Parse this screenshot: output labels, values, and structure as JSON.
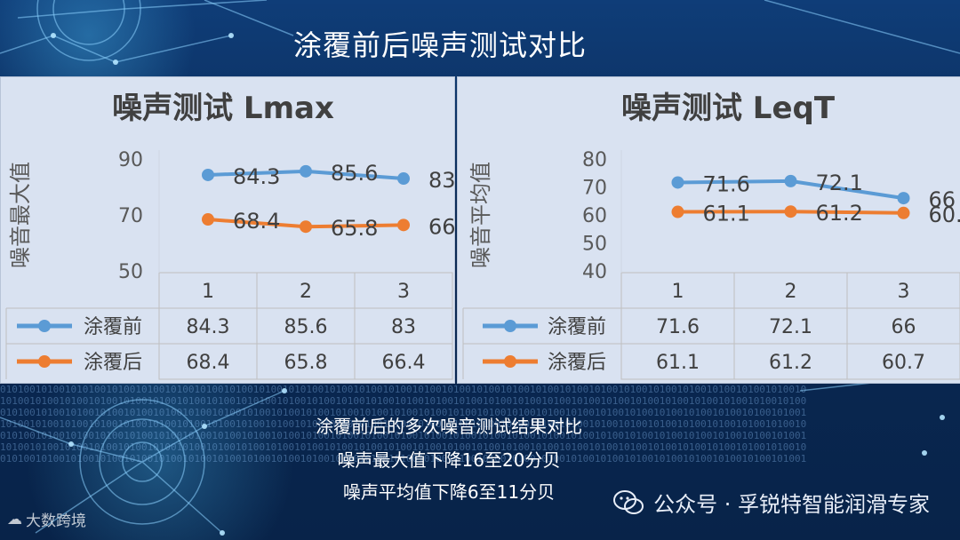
{
  "slide": {
    "title": "涂覆前后噪声测试对比",
    "captions": [
      "涂覆前后的多次噪音测试结果对比",
      "噪声最大值下降16至20分贝",
      "噪声平均值下降6至11分贝"
    ],
    "wechat_label": "公众号 · 孚锐特智能润滑专家",
    "watermark": "大数跨境"
  },
  "colors": {
    "before": "#5b9bd5",
    "after": "#ed7d31",
    "panel_bg": "#d9e2f1"
  },
  "chart_data": [
    {
      "type": "line",
      "title": "噪声测试 Lmax",
      "ylabel": "噪音最大值",
      "categories": [
        "1",
        "2",
        "3"
      ],
      "yticks": [
        50,
        70,
        90
      ],
      "ylim": [
        50,
        90
      ],
      "series": [
        {
          "name": "涂覆前",
          "values": [
            84.3,
            85.6,
            83
          ]
        },
        {
          "name": "涂覆后",
          "values": [
            68.4,
            65.8,
            66.4
          ]
        }
      ],
      "data_table": true,
      "grid": false
    },
    {
      "type": "line",
      "title": "噪声测试 LeqT",
      "ylabel": "噪音平均值",
      "categories": [
        "1",
        "2",
        "3"
      ],
      "yticks": [
        40,
        50,
        60,
        70,
        80
      ],
      "ylim": [
        40,
        80
      ],
      "series": [
        {
          "name": "涂覆前",
          "values": [
            71.6,
            72.1,
            66
          ]
        },
        {
          "name": "涂覆后",
          "values": [
            61.1,
            61.2,
            60.7
          ]
        }
      ],
      "data_table": true,
      "grid": false
    }
  ]
}
